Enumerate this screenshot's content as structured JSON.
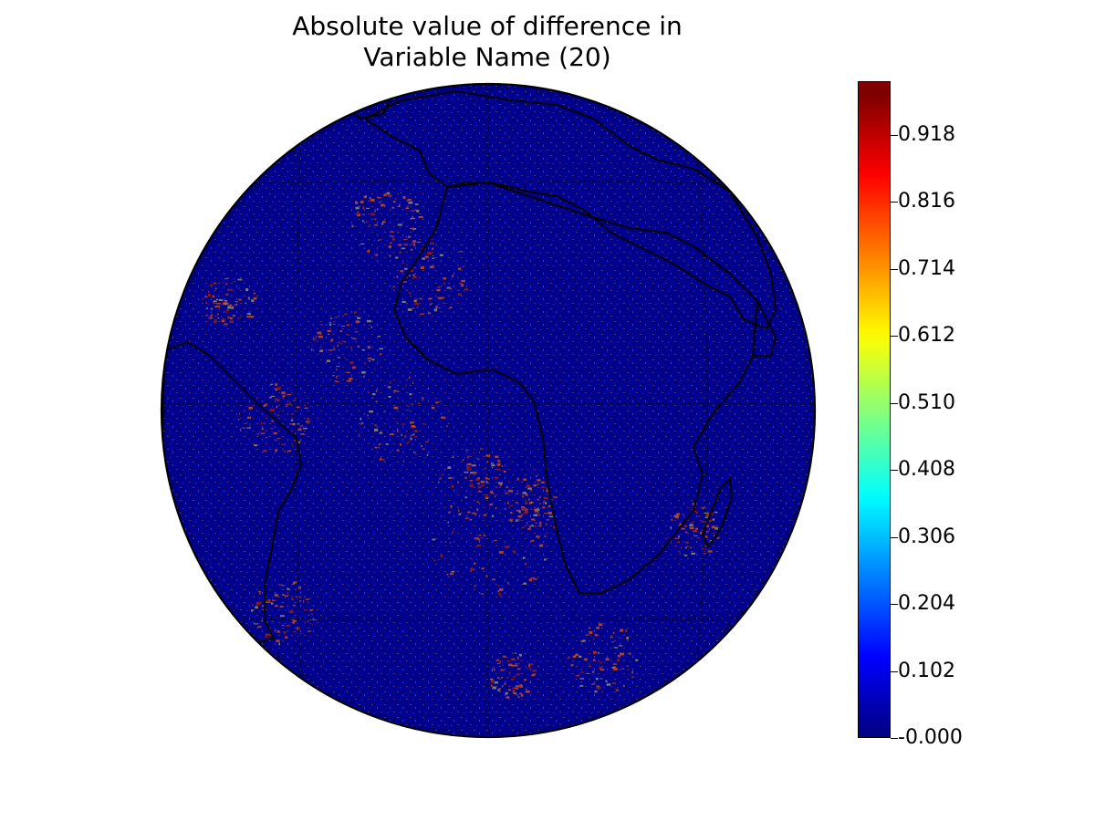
{
  "title": {
    "line1": "Absolute value of difference in",
    "line2": "Variable Name (20)"
  },
  "map": {
    "projection": "orthographic",
    "background_color": "#00008f",
    "coastline_color": "#000000",
    "graticule": "dotted"
  },
  "colorbar": {
    "colormap": "jet",
    "min": -0.0,
    "max": 1.0,
    "ticks": [
      "-0.000",
      "0.102",
      "0.204",
      "0.306",
      "0.408",
      "0.510",
      "0.612",
      "0.714",
      "0.816",
      "0.918"
    ],
    "tick_values": [
      0,
      0.102,
      0.204,
      0.306,
      0.408,
      0.51,
      0.612,
      0.714,
      0.816,
      0.918
    ]
  }
}
